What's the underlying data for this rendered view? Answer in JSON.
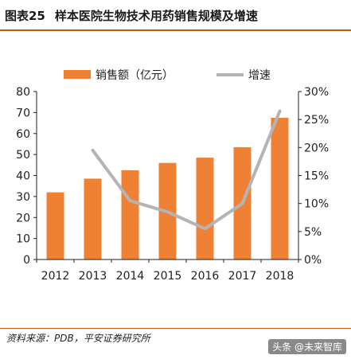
{
  "figure": {
    "number": "图表25",
    "title": "样本医院生物技术用药销售规模及增速",
    "source": "资料来源：PDB，平安证券研究所",
    "watermark": "头条 @未来智库"
  },
  "colors": {
    "bar": "#ee8133",
    "line": "#b4b4b4",
    "accent_rule": "#c8581a",
    "axis": "#222222"
  },
  "chart_data": {
    "type": "bar",
    "categories": [
      "2012",
      "2013",
      "2014",
      "2015",
      "2016",
      "2017",
      "2018"
    ],
    "series": [
      {
        "name": "销售额（亿元）",
        "type": "bar",
        "axis": "left",
        "values": [
          32,
          38.5,
          42.5,
          46,
          48.5,
          53.5,
          67.5
        ]
      },
      {
        "name": "增速",
        "type": "line",
        "axis": "right",
        "values": [
          null,
          19.5,
          10.5,
          8.5,
          5.5,
          10,
          26.5
        ]
      }
    ],
    "y_left": {
      "ticks": [
        "0",
        "10",
        "20",
        "30",
        "40",
        "50",
        "60",
        "70",
        "80"
      ],
      "ylim": [
        0,
        80
      ]
    },
    "y_right": {
      "ticks": [
        "0%",
        "5%",
        "10%",
        "15%",
        "20%",
        "25%",
        "30%"
      ],
      "ylim": [
        0,
        30
      ]
    },
    "legend_position": "top-center",
    "grid": false
  }
}
